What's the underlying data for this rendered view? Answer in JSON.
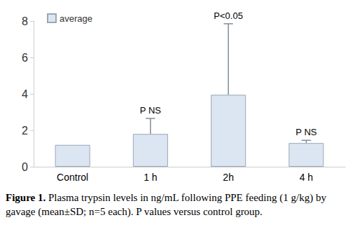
{
  "chart_data": {
    "type": "bar",
    "categories": [
      "Control",
      "1 h",
      "2h",
      "4 h"
    ],
    "values": [
      1.2,
      1.8,
      3.95,
      1.3
    ],
    "errors": [
      null,
      0.85,
      3.9,
      0.15
    ],
    "annotations": [
      null,
      "P NS",
      "P<0.05",
      "P NS"
    ],
    "series_name": "average",
    "color": "#dce6f2",
    "ylim": [
      0,
      8
    ],
    "yticks": [
      0,
      2,
      4,
      6,
      8
    ],
    "grid": false,
    "legend": "upper left",
    "caption_label": "Figure 1.",
    "caption": "Plasma trypsin levels in ng/mL following PPE feeding (1 g/kg) by gavage (mean±SD; n=5 each). P values versus control group."
  }
}
